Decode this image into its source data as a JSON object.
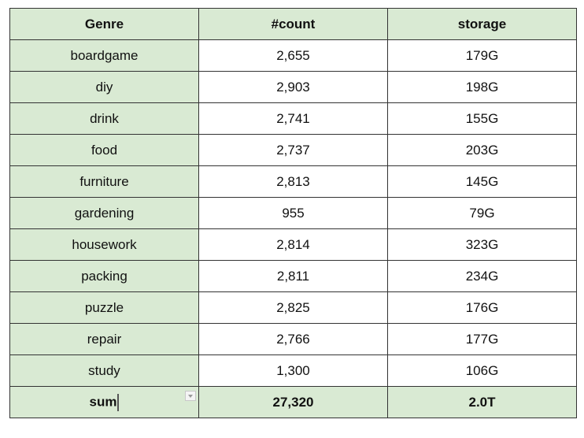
{
  "table": {
    "headers": [
      "Genre",
      "#count",
      "storage"
    ],
    "rows": [
      {
        "genre": "boardgame",
        "count": "2,655",
        "storage": "179G"
      },
      {
        "genre": "diy",
        "count": "2,903",
        "storage": "198G"
      },
      {
        "genre": "drink",
        "count": "2,741",
        "storage": "155G"
      },
      {
        "genre": "food",
        "count": "2,737",
        "storage": "203G"
      },
      {
        "genre": "furniture",
        "count": "2,813",
        "storage": "145G"
      },
      {
        "genre": "gardening",
        "count": "955",
        "storage": "79G"
      },
      {
        "genre": "housework",
        "count": "2,814",
        "storage": "323G"
      },
      {
        "genre": "packing",
        "count": "2,811",
        "storage": "234G"
      },
      {
        "genre": "puzzle",
        "count": "2,825",
        "storage": "176G"
      },
      {
        "genre": "repair",
        "count": "2,766",
        "storage": "177G"
      },
      {
        "genre": "study",
        "count": "1,300",
        "storage": "106G"
      }
    ],
    "sum": {
      "genre": "sum",
      "count": "27,320",
      "storage": "2.0T"
    }
  },
  "colors": {
    "header_bg": "#d9ead3",
    "genre_bg": "#d9ead3",
    "sum_bg": "#d9ead3",
    "cell_bg": "#ffffff",
    "border": "#333333"
  },
  "icons": {
    "sum_cell_control": "dropdown-arrow-icon"
  }
}
